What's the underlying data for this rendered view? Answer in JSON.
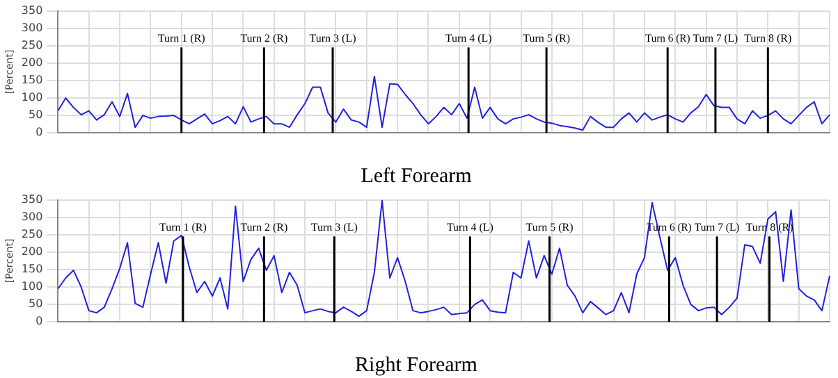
{
  "chart_data": [
    {
      "type": "line",
      "title": "Left Forearm",
      "ylabel": "[Percent]",
      "ylim": [
        0,
        350
      ],
      "yticks": [
        0,
        50,
        100,
        150,
        200,
        250,
        300,
        350
      ],
      "grid": true,
      "categories": [
        null,
        null,
        null,
        null,
        null,
        null,
        null,
        null,
        null,
        null,
        null,
        null,
        null,
        null,
        null,
        null,
        null,
        null,
        null,
        null,
        null,
        null,
        null,
        null,
        null,
        null,
        null,
        null,
        null,
        null,
        null,
        null,
        null,
        null,
        null,
        null,
        null,
        null,
        null,
        null,
        null,
        null,
        null,
        null,
        null,
        null,
        null,
        null,
        null,
        null,
        null,
        null,
        null,
        null,
        null,
        null,
        null,
        null,
        null,
        null,
        null,
        null,
        null,
        null,
        null,
        null,
        null,
        null,
        null,
        null,
        null,
        null,
        null,
        null,
        null,
        null,
        null,
        null,
        null,
        null,
        null,
        null,
        null,
        null,
        null,
        null,
        null,
        null,
        null,
        null,
        null,
        null,
        null,
        null,
        null,
        null,
        null,
        null,
        null,
        null,
        null
      ],
      "series": [
        {
          "color": "#2020e0",
          "values": [
            63,
            100,
            73,
            52,
            63,
            37,
            52,
            89,
            47,
            113,
            16,
            50,
            42,
            47,
            48,
            50,
            37,
            26,
            40,
            54,
            26,
            35,
            47,
            26,
            75,
            31,
            40,
            47,
            26,
            26,
            16,
            52,
            84,
            131,
            131,
            57,
            31,
            68,
            37,
            31,
            16,
            162,
            16,
            141,
            139,
            110,
            84,
            52,
            26,
            47,
            73,
            52,
            84,
            42,
            131,
            42,
            73,
            40,
            26,
            40,
            45,
            52,
            40,
            31,
            28,
            21,
            18,
            14,
            8,
            47,
            30,
            16,
            16,
            40,
            57,
            31,
            57,
            37,
            45,
            52,
            40,
            31,
            57,
            75,
            110,
            78,
            73,
            73,
            40,
            26,
            63,
            42,
            50,
            63,
            40,
            26,
            50,
            73,
            89,
            26,
            52
          ]
        }
      ],
      "annotations": [
        "Turn 1 (R)",
        "Turn 2 (R)",
        "Turn 3 (L)",
        "Turn 4 (L)",
        "Turn 5 (R)",
        "Turn 6 (R)",
        "Turn 7 (L)",
        "Turn 8 (R)"
      ]
    },
    {
      "type": "line",
      "title": "Right Forearm",
      "ylabel": "[Percent]",
      "ylim": [
        0,
        350
      ],
      "yticks": [
        0,
        50,
        100,
        150,
        200,
        250,
        300,
        350
      ],
      "grid": true,
      "categories": [
        null,
        null,
        null,
        null,
        null,
        null,
        null,
        null,
        null,
        null,
        null,
        null,
        null,
        null,
        null,
        null,
        null,
        null,
        null,
        null,
        null,
        null,
        null,
        null,
        null,
        null,
        null,
        null,
        null,
        null,
        null,
        null,
        null,
        null,
        null,
        null,
        null,
        null,
        null,
        null,
        null,
        null,
        null,
        null,
        null,
        null,
        null,
        null,
        null,
        null,
        null,
        null,
        null,
        null,
        null,
        null,
        null,
        null,
        null,
        null,
        null,
        null,
        null,
        null,
        null,
        null,
        null,
        null,
        null,
        null,
        null,
        null,
        null,
        null,
        null,
        null,
        null,
        null,
        null,
        null,
        null,
        null,
        null,
        null,
        null,
        null,
        null,
        null,
        null,
        null,
        null,
        null,
        null,
        null,
        null,
        null,
        null,
        null,
        null,
        null,
        null
      ],
      "series": [
        {
          "color": "#2020e0",
          "values": [
            95,
            126,
            148,
            100,
            32,
            26,
            42,
            95,
            153,
            227,
            53,
            42,
            137,
            227,
            111,
            232,
            248,
            158,
            84,
            116,
            74,
            126,
            37,
            332,
            116,
            179,
            211,
            148,
            190,
            84,
            142,
            105,
            26,
            32,
            37,
            30,
            26,
            42,
            30,
            16,
            32,
            142,
            348,
            126,
            184,
            116,
            32,
            26,
            30,
            35,
            42,
            21,
            24,
            26,
            50,
            63,
            32,
            28,
            26,
            142,
            126,
            232,
            126,
            190,
            137,
            211,
            105,
            74,
            26,
            58,
            40,
            21,
            32,
            84,
            26,
            137,
            184,
            342,
            242,
            148,
            184,
            105,
            50,
            32,
            40,
            42,
            21,
            42,
            68,
            221,
            216,
            168,
            295,
            316,
            116,
            321,
            95,
            74,
            63,
            32,
            132
          ]
        }
      ],
      "annotations": [
        "Turn 1 (R)",
        "Turn 2 (R)",
        "Turn 3 (L)",
        "Turn 4 (L)",
        "Turn 5 (R)",
        "Turn 6 (R)",
        "Turn 7 (L)",
        "Turn 8 (R)"
      ]
    }
  ]
}
